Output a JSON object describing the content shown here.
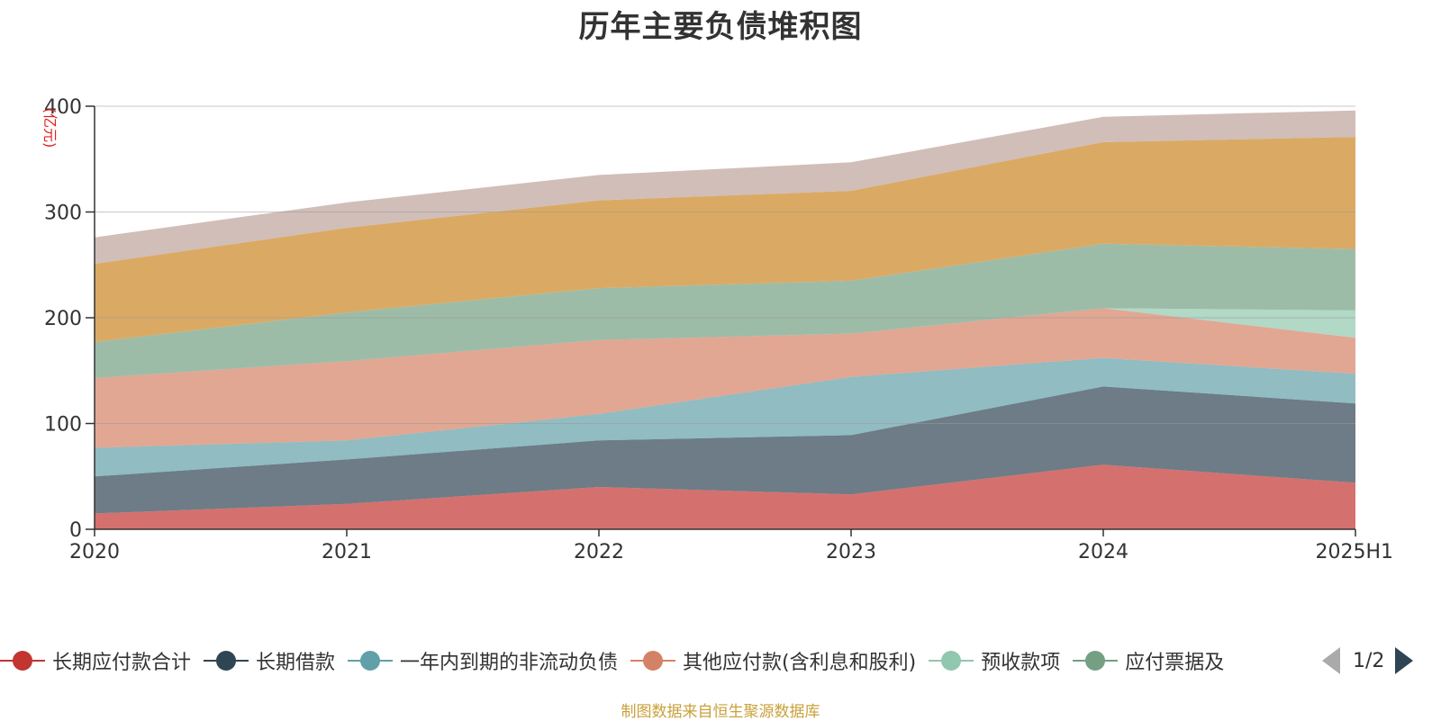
{
  "chart_data": {
    "type": "area",
    "title": "历年主要负债堆积图",
    "ylabel": "(亿元)",
    "ylim": [
      0,
      400
    ],
    "y_ticks": [
      "0",
      "100",
      "200",
      "300",
      "400"
    ],
    "categories": [
      "2020",
      "2021",
      "2022",
      "2023",
      "2024",
      "2025H1"
    ],
    "stacked": true,
    "grid": true,
    "legend_position": "bottom",
    "series": [
      {
        "name": "长期应付款合计",
        "color": "#c23531",
        "values": [
          15,
          24,
          40,
          33,
          61,
          44
        ]
      },
      {
        "name": "长期借款",
        "color": "#2f4554",
        "values": [
          35,
          42,
          44,
          56,
          74,
          75
        ]
      },
      {
        "name": "一年内到期的非流动负债",
        "color": "#61a0a8",
        "values": [
          27,
          18,
          25,
          55,
          27,
          28
        ]
      },
      {
        "name": "其他应付款(含利息和股利)",
        "color": "#d48265",
        "values": [
          66,
          75,
          70,
          41,
          47,
          34
        ]
      },
      {
        "name": "预收款项",
        "color": "#91c7ae",
        "values": [
          0,
          0,
          0,
          0,
          0,
          26
        ]
      },
      {
        "name": "应付票据及应付账款",
        "color": "#749f83",
        "values": [
          34,
          46,
          49,
          50,
          61,
          58
        ]
      },
      {
        "name": "",
        "color": "#ca8622",
        "values": [
          74,
          80,
          83,
          85,
          96,
          106
        ]
      },
      {
        "name": "",
        "color": "#bda29a",
        "values": [
          25,
          24,
          24,
          27,
          24,
          25
        ]
      }
    ]
  },
  "legend": {
    "items": [
      {
        "label": "长期应付款合计",
        "color": "#c23531"
      },
      {
        "label": "长期借款",
        "color": "#2f4554"
      },
      {
        "label": "一年内到期的非流动负债",
        "color": "#61a0a8"
      },
      {
        "label": "其他应付款(含利息和股利)",
        "color": "#d48265"
      },
      {
        "label": "预收款项",
        "color": "#91c7ae"
      },
      {
        "label": "应付票据及",
        "color": "#749f83"
      }
    ],
    "page_indicator": "1/2"
  },
  "footer": {
    "source": "制图数据来自恒生聚源数据库"
  }
}
